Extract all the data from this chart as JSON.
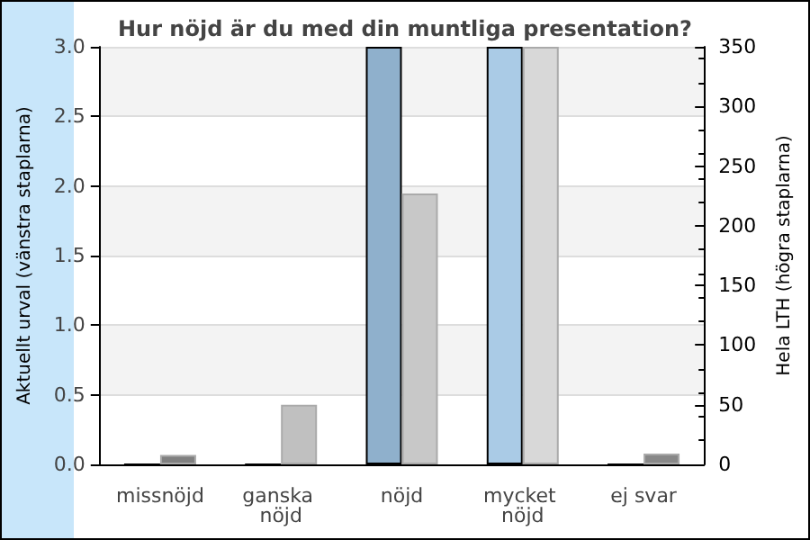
{
  "chart_data": {
    "type": "bar",
    "title": "Hur nöjd är du med din muntliga presentation?",
    "categories": [
      "missnöjd",
      "ganska nöjd",
      "nöjd",
      "mycket nöjd",
      "ej svar"
    ],
    "ylabel": "Aktuellt urval (vänstra staplarna)",
    "y2label": "Hela LTH (högra staplarna)",
    "series": [
      {
        "colors": [
          "#8fb0cc",
          "#8fb0cc",
          "#8fb0cc",
          "#aacbe6",
          "#8fb0cc"
        ],
        "values": [
          0,
          0,
          3,
          3,
          0
        ]
      },
      {
        "axis": "y2",
        "colors": [
          "#808080",
          "#c0c0c0",
          "#c8c8c8",
          "#d8d8d8",
          "#888888"
        ],
        "values": [
          8,
          50,
          227,
          350,
          9
        ]
      }
    ],
    "ylim": [
      0,
      3
    ],
    "yticks": [
      {
        "value": 0,
        "label": "0.0"
      },
      {
        "value": 0.5,
        "label": "0.5"
      },
      {
        "value": 1,
        "label": "1.0"
      },
      {
        "value": 1.5,
        "label": "1.5"
      },
      {
        "value": 2,
        "label": "2.0"
      },
      {
        "value": 2.5,
        "label": "2.5"
      },
      {
        "value": 3,
        "label": "3.0"
      }
    ],
    "y2lim": [
      0,
      350
    ],
    "y2ticks": [
      0,
      50,
      100,
      150,
      200,
      250,
      300,
      350
    ],
    "grid": "y"
  }
}
